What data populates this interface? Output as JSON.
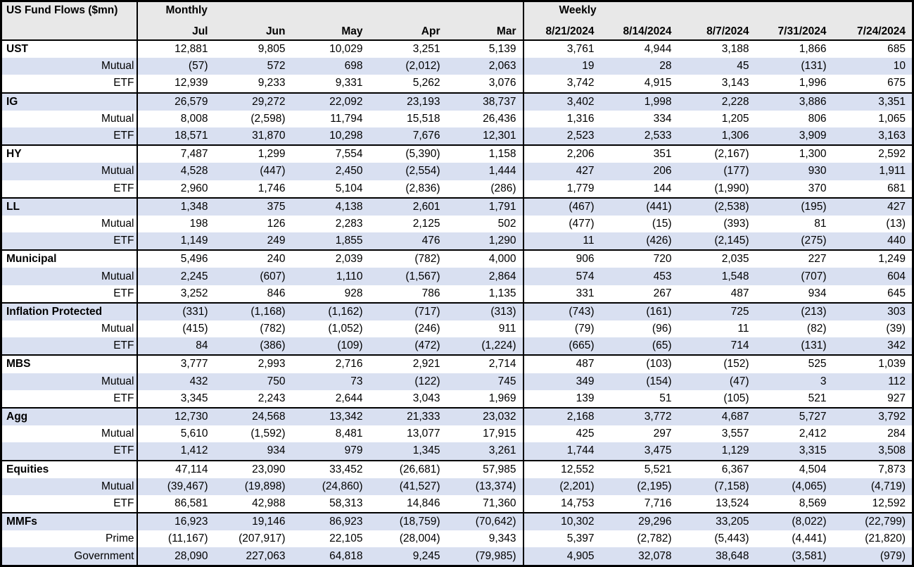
{
  "colors": {
    "band_row_bg": "#d9e0f1",
    "header_bg": "#e8e8e8",
    "border": "#000000",
    "text": "#000000"
  },
  "chart_data": {
    "type": "table",
    "title": "US Fund Flows ($mn)",
    "monthly_label": "Monthly",
    "weekly_label": "Weekly",
    "monthly_columns": [
      "Jul",
      "Jun",
      "May",
      "Apr",
      "Mar"
    ],
    "weekly_columns": [
      "8/21/2024",
      "8/14/2024",
      "8/7/2024",
      "7/31/2024",
      "7/24/2024"
    ],
    "groups": [
      {
        "name": "UST",
        "rows": [
          {
            "label": "UST",
            "monthly": [
              "12,881",
              "9,805",
              "10,029",
              "3,251",
              "5,139"
            ],
            "weekly": [
              "3,761",
              "4,944",
              "3,188",
              "1,866",
              "685"
            ]
          },
          {
            "label": "Mutual",
            "monthly": [
              "(57)",
              "572",
              "698",
              "(2,012)",
              "2,063"
            ],
            "weekly": [
              "19",
              "28",
              "45",
              "(131)",
              "10"
            ]
          },
          {
            "label": "ETF",
            "monthly": [
              "12,939",
              "9,233",
              "9,331",
              "5,262",
              "3,076"
            ],
            "weekly": [
              "3,742",
              "4,915",
              "3,143",
              "1,996",
              "675"
            ]
          }
        ]
      },
      {
        "name": "IG",
        "rows": [
          {
            "label": "IG",
            "monthly": [
              "26,579",
              "29,272",
              "22,092",
              "23,193",
              "38,737"
            ],
            "weekly": [
              "3,402",
              "1,998",
              "2,228",
              "3,886",
              "3,351"
            ]
          },
          {
            "label": "Mutual",
            "monthly": [
              "8,008",
              "(2,598)",
              "11,794",
              "15,518",
              "26,436"
            ],
            "weekly": [
              "1,316",
              "334",
              "1,205",
              "806",
              "1,065"
            ]
          },
          {
            "label": "ETF",
            "monthly": [
              "18,571",
              "31,870",
              "10,298",
              "7,676",
              "12,301"
            ],
            "weekly": [
              "2,523",
              "2,533",
              "1,306",
              "3,909",
              "3,163"
            ]
          }
        ]
      },
      {
        "name": "HY",
        "rows": [
          {
            "label": "HY",
            "monthly": [
              "7,487",
              "1,299",
              "7,554",
              "(5,390)",
              "1,158"
            ],
            "weekly": [
              "2,206",
              "351",
              "(2,167)",
              "1,300",
              "2,592"
            ]
          },
          {
            "label": "Mutual",
            "monthly": [
              "4,528",
              "(447)",
              "2,450",
              "(2,554)",
              "1,444"
            ],
            "weekly": [
              "427",
              "206",
              "(177)",
              "930",
              "1,911"
            ]
          },
          {
            "label": "ETF",
            "monthly": [
              "2,960",
              "1,746",
              "5,104",
              "(2,836)",
              "(286)"
            ],
            "weekly": [
              "1,779",
              "144",
              "(1,990)",
              "370",
              "681"
            ]
          }
        ]
      },
      {
        "name": "LL",
        "rows": [
          {
            "label": "LL",
            "monthly": [
              "1,348",
              "375",
              "4,138",
              "2,601",
              "1,791"
            ],
            "weekly": [
              "(467)",
              "(441)",
              "(2,538)",
              "(195)",
              "427"
            ]
          },
          {
            "label": "Mutual",
            "monthly": [
              "198",
              "126",
              "2,283",
              "2,125",
              "502"
            ],
            "weekly": [
              "(477)",
              "(15)",
              "(393)",
              "81",
              "(13)"
            ]
          },
          {
            "label": "ETF",
            "monthly": [
              "1,149",
              "249",
              "1,855",
              "476",
              "1,290"
            ],
            "weekly": [
              "11",
              "(426)",
              "(2,145)",
              "(275)",
              "440"
            ]
          }
        ]
      },
      {
        "name": "Municipal",
        "rows": [
          {
            "label": "Municipal",
            "monthly": [
              "5,496",
              "240",
              "2,039",
              "(782)",
              "4,000"
            ],
            "weekly": [
              "906",
              "720",
              "2,035",
              "227",
              "1,249"
            ]
          },
          {
            "label": "Mutual",
            "monthly": [
              "2,245",
              "(607)",
              "1,110",
              "(1,567)",
              "2,864"
            ],
            "weekly": [
              "574",
              "453",
              "1,548",
              "(707)",
              "604"
            ]
          },
          {
            "label": "ETF",
            "monthly": [
              "3,252",
              "846",
              "928",
              "786",
              "1,135"
            ],
            "weekly": [
              "331",
              "267",
              "487",
              "934",
              "645"
            ]
          }
        ]
      },
      {
        "name": "Inflation Protected",
        "rows": [
          {
            "label": "Inflation Protected",
            "monthly": [
              "(331)",
              "(1,168)",
              "(1,162)",
              "(717)",
              "(313)"
            ],
            "weekly": [
              "(743)",
              "(161)",
              "725",
              "(213)",
              "303"
            ]
          },
          {
            "label": "Mutual",
            "monthly": [
              "(415)",
              "(782)",
              "(1,052)",
              "(246)",
              "911"
            ],
            "weekly": [
              "(79)",
              "(96)",
              "11",
              "(82)",
              "(39)"
            ]
          },
          {
            "label": "ETF",
            "monthly": [
              "84",
              "(386)",
              "(109)",
              "(472)",
              "(1,224)"
            ],
            "weekly": [
              "(665)",
              "(65)",
              "714",
              "(131)",
              "342"
            ]
          }
        ]
      },
      {
        "name": "MBS",
        "rows": [
          {
            "label": "MBS",
            "monthly": [
              "3,777",
              "2,993",
              "2,716",
              "2,921",
              "2,714"
            ],
            "weekly": [
              "487",
              "(103)",
              "(152)",
              "525",
              "1,039"
            ]
          },
          {
            "label": "Mutual",
            "monthly": [
              "432",
              "750",
              "73",
              "(122)",
              "745"
            ],
            "weekly": [
              "349",
              "(154)",
              "(47)",
              "3",
              "112"
            ]
          },
          {
            "label": "ETF",
            "monthly": [
              "3,345",
              "2,243",
              "2,644",
              "3,043",
              "1,969"
            ],
            "weekly": [
              "139",
              "51",
              "(105)",
              "521",
              "927"
            ]
          }
        ]
      },
      {
        "name": "Agg",
        "rows": [
          {
            "label": "Agg",
            "monthly": [
              "12,730",
              "24,568",
              "13,342",
              "21,333",
              "23,032"
            ],
            "weekly": [
              "2,168",
              "3,772",
              "4,687",
              "5,727",
              "3,792"
            ]
          },
          {
            "label": "Mutual",
            "monthly": [
              "5,610",
              "(1,592)",
              "8,481",
              "13,077",
              "17,915"
            ],
            "weekly": [
              "425",
              "297",
              "3,557",
              "2,412",
              "284"
            ]
          },
          {
            "label": "ETF",
            "monthly": [
              "1,412",
              "934",
              "979",
              "1,345",
              "3,261"
            ],
            "weekly": [
              "1,744",
              "3,475",
              "1,129",
              "3,315",
              "3,508"
            ]
          }
        ]
      },
      {
        "name": "Equities",
        "rows": [
          {
            "label": "Equities",
            "monthly": [
              "47,114",
              "23,090",
              "33,452",
              "(26,681)",
              "57,985"
            ],
            "weekly": [
              "12,552",
              "5,521",
              "6,367",
              "4,504",
              "7,873"
            ]
          },
          {
            "label": "Mutual",
            "monthly": [
              "(39,467)",
              "(19,898)",
              "(24,860)",
              "(41,527)",
              "(13,374)"
            ],
            "weekly": [
              "(2,201)",
              "(2,195)",
              "(7,158)",
              "(4,065)",
              "(4,719)"
            ]
          },
          {
            "label": "ETF",
            "monthly": [
              "86,581",
              "42,988",
              "58,313",
              "14,846",
              "71,360"
            ],
            "weekly": [
              "14,753",
              "7,716",
              "13,524",
              "8,569",
              "12,592"
            ]
          }
        ]
      },
      {
        "name": "MMFs",
        "rows": [
          {
            "label": "MMFs",
            "monthly": [
              "16,923",
              "19,146",
              "86,923",
              "(18,759)",
              "(70,642)"
            ],
            "weekly": [
              "10,302",
              "29,296",
              "33,205",
              "(8,022)",
              "(22,799)"
            ]
          },
          {
            "label": "Prime",
            "monthly": [
              "(11,167)",
              "(207,917)",
              "22,105",
              "(28,004)",
              "9,343"
            ],
            "weekly": [
              "5,397",
              "(2,782)",
              "(5,443)",
              "(4,441)",
              "(21,820)"
            ]
          },
          {
            "label": "Government",
            "monthly": [
              "28,090",
              "227,063",
              "64,818",
              "9,245",
              "(79,985)"
            ],
            "weekly": [
              "4,905",
              "32,078",
              "38,648",
              "(3,581)",
              "(979)"
            ]
          }
        ]
      }
    ]
  }
}
